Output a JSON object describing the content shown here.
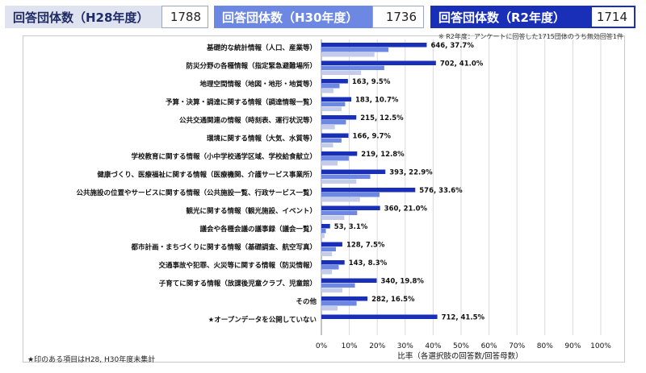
{
  "headers": [
    {
      "label": "回答団体数（H28年度）",
      "value": "1788"
    },
    {
      "label": "回答団体数（H30年度）",
      "value": "1736"
    },
    {
      "label": "回答団体数（R2年度）",
      "value": "1714"
    }
  ],
  "note": "※ R2年度：アンケートに回答した1715団体のうち無効回答1件",
  "footnote": "★印のある項目はH28, H30年度未集計",
  "colors": {
    "r2": "#1a2fb8",
    "h30": "#6d88e2",
    "h28": "#c4ccea"
  },
  "chart_data": {
    "type": "bar",
    "orientation": "horizontal",
    "categories": [
      "基礎的な統計情報（人口、産業等）",
      "防災分野の各種情報（指定緊急避難場所）",
      "地理空間情報（地図・地形・地質等）",
      "予算・決算・調達に関する情報（調達情報一覧）",
      "公共交通関連の情報（時刻表、運行状況等）",
      "環境に関する情報（大気、水質等）",
      "学校教育に関する情報（小中学校通学区域、学校給食献立）",
      "健康づくり、医療福祉に関する情報（医療機関、介護サービス事業所）",
      "公共施設の位置やサービスに関する情報（公共施設一覧、行政サービス一覧）",
      "観光に関する情報（観光施設、イベント）",
      "議会や各種会議の議事録（議会一覧）",
      "都市計画・まちづくりに関する情報（基礎調査、航空写真）",
      "交通事故や犯罪、火災等に関する情報（防災情報）",
      "子育てに関する情報（放課後児童クラブ、児童館）",
      "その他",
      "★オープンデータを公開していない"
    ],
    "series": [
      {
        "name": "R2年度",
        "values": [
          37.7,
          41.0,
          9.5,
          10.7,
          12.5,
          9.7,
          12.8,
          22.9,
          33.6,
          21.0,
          3.1,
          7.5,
          8.3,
          19.8,
          16.5,
          41.5
        ]
      },
      {
        "name": "H30年度",
        "values": [
          24.0,
          22.5,
          6.5,
          8.5,
          8.8,
          7.2,
          9.8,
          17.5,
          20.8,
          12.8,
          1.6,
          5.2,
          6.2,
          12.0,
          12.6,
          null
        ]
      },
      {
        "name": "H28年度",
        "values": [
          19.0,
          14.2,
          4.3,
          7.2,
          4.8,
          4.2,
          5.8,
          12.5,
          13.8,
          8.2,
          1.1,
          3.8,
          3.8,
          7.5,
          5.8,
          null
        ]
      }
    ],
    "data_labels": [
      "646, 37.7%",
      "702, 41.0%",
      "163, 9.5%",
      "183, 10.7%",
      "215, 12.5%",
      "166, 9.7%",
      "219, 12.8%",
      "393, 22.9%",
      "576, 33.6%",
      "360, 21.0%",
      "53, 3.1%",
      "128, 7.5%",
      "143, 8.3%",
      "340, 19.8%",
      "282, 16.5%",
      "712, 41.5%"
    ],
    "xticks": [
      "0%",
      "10%",
      "20%",
      "30%",
      "40%",
      "50%",
      "60%",
      "70%",
      "80%",
      "90%",
      "100%"
    ],
    "xlim": [
      0,
      100
    ],
    "xlabel": "比率（各選択肢の回答数/回答母数）",
    "grid": true
  }
}
